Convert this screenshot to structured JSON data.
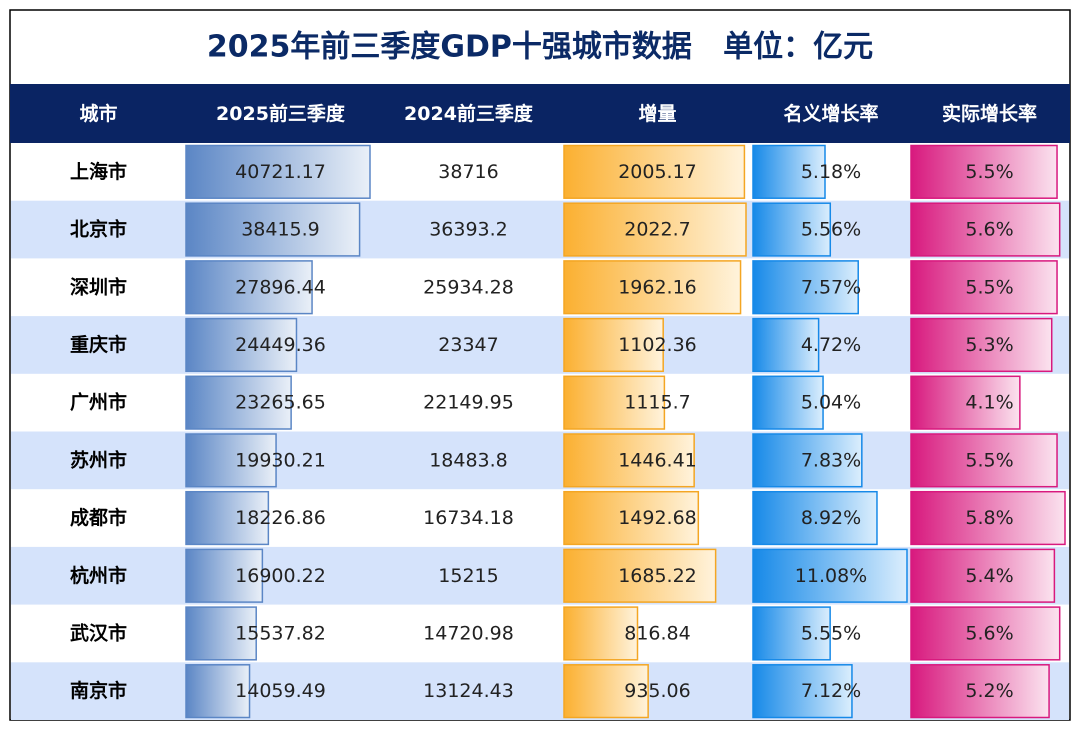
{
  "title": "2025年前三季度GDP十强城市数据   单位：亿元",
  "table": {
    "header": [
      "城市",
      "2025前三季度",
      "2024前三季度",
      "增量",
      "名义增长率",
      "实际增长率"
    ],
    "rows": [
      [
        "上海市",
        40721.17,
        38716,
        2005.17,
        "5.18%",
        "5.5%"
      ],
      [
        "北京市",
        38415.9,
        36393.2,
        2022.7,
        "5.56%",
        "5.6%"
      ],
      [
        "深圳市",
        27896.44,
        25934.28,
        1962.16,
        "7.57%",
        "5.5%"
      ],
      [
        "重庆市",
        24449.36,
        23347,
        1102.36,
        "4.72%",
        "5.3%"
      ],
      [
        "广州市",
        23265.65,
        22149.95,
        1115.7,
        "5.04%",
        "4.1%"
      ],
      [
        "苏州市",
        19930.21,
        18483.8,
        1446.41,
        "7.83%",
        "5.5%"
      ],
      [
        "成都市",
        18226.86,
        16734.18,
        1492.68,
        "8.92%",
        "5.8%"
      ],
      [
        "杭州市",
        16900.22,
        15215,
        1685.22,
        "11.08%",
        "5.4%"
      ],
      [
        "武汉市",
        15537.82,
        14720.98,
        816.84,
        "5.55%",
        "5.6%"
      ],
      [
        "南京市",
        14059.49,
        13124.43,
        935.06,
        "7.12%",
        "5.2%"
      ]
    ]
  }
}
